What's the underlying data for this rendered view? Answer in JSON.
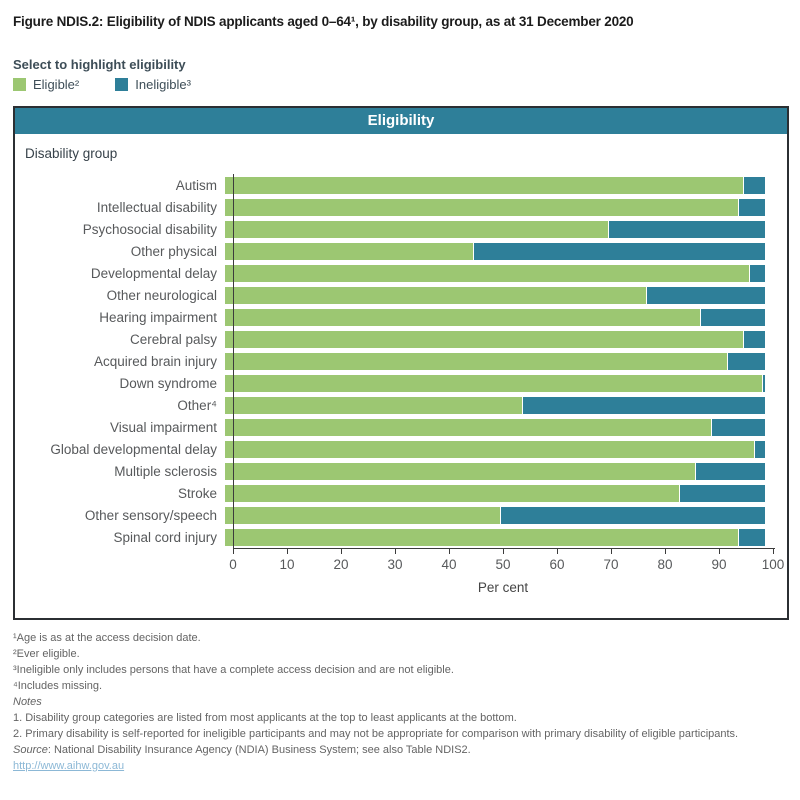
{
  "title": "Figure NDIS.2: Eligibility of NDIS applicants aged 0–64¹, by disability group, as at 31 December 2020",
  "legend": {
    "title": "Select to highlight eligibility",
    "items": [
      {
        "id": "eligible",
        "label": "Eligible²",
        "color": "#9cc772"
      },
      {
        "id": "ineligible",
        "label": "Ineligible³",
        "color": "#2e7f99"
      }
    ]
  },
  "chart": {
    "header": "Eligibility",
    "group_axis_label": "Disability group",
    "x_axis_label": "Per cent"
  },
  "chart_data": {
    "type": "bar",
    "orientation": "horizontal",
    "stacked": true,
    "title": "Eligibility",
    "xlabel": "Per cent",
    "ylabel": "Disability group",
    "xlim": [
      0,
      100
    ],
    "x_ticks": [
      0,
      10,
      20,
      30,
      40,
      50,
      60,
      70,
      80,
      90,
      100
    ],
    "grid": false,
    "legend_position": "top-left-above-chart",
    "categories": [
      "Autism",
      "Intellectual disability",
      "Psychosocial disability",
      "Other physical",
      "Developmental delay",
      "Other neurological",
      "Hearing impairment",
      "Cerebral palsy",
      "Acquired brain injury",
      "Down syndrome",
      "Other⁴",
      "Visual impairment",
      "Global developmental delay",
      "Multiple sclerosis",
      "Stroke",
      "Other sensory/speech",
      "Spinal cord injury"
    ],
    "series": [
      {
        "name": "Eligible",
        "color": "#9cc772",
        "values": [
          96,
          95,
          71,
          46,
          97,
          78,
          88,
          96,
          93,
          99.5,
          55,
          90,
          98,
          87,
          84,
          51,
          95
        ]
      },
      {
        "name": "Ineligible",
        "color": "#2e7f99",
        "values": [
          4,
          5,
          29,
          54,
          3,
          22,
          12,
          4,
          7,
          0.5,
          45,
          10,
          2,
          13,
          16,
          49,
          5
        ]
      }
    ]
  },
  "colors": {
    "eligible_green": "#9cc772",
    "ineligible_teal": "#2e7f99",
    "header_teal": "#2e7f99",
    "box_border": "#2b2f33",
    "link_blue": "#8cb8d6"
  },
  "footnotes": [
    {
      "text": "¹Age is as at the access decision date."
    },
    {
      "text": "²Ever eligible."
    },
    {
      "text": "³Ineligible only includes persons that have a complete access decision and are not eligible."
    },
    {
      "text": "⁴Includes missing."
    },
    {
      "text": "Notes",
      "italic": true
    },
    {
      "text": "1. Disability group categories are listed from most applicants at the top to least applicants at the bottom."
    },
    {
      "text": "2. Primary disability is self-reported for ineligible participants and may not be appropriate for comparison with primary disability of eligible participants."
    },
    {
      "italic_prefix": "Source",
      "text": ": National Disability Insurance Agency (NDIA) Business System; see also Table NDIS2."
    }
  ],
  "source_link": "http://www.aihw.gov.au"
}
